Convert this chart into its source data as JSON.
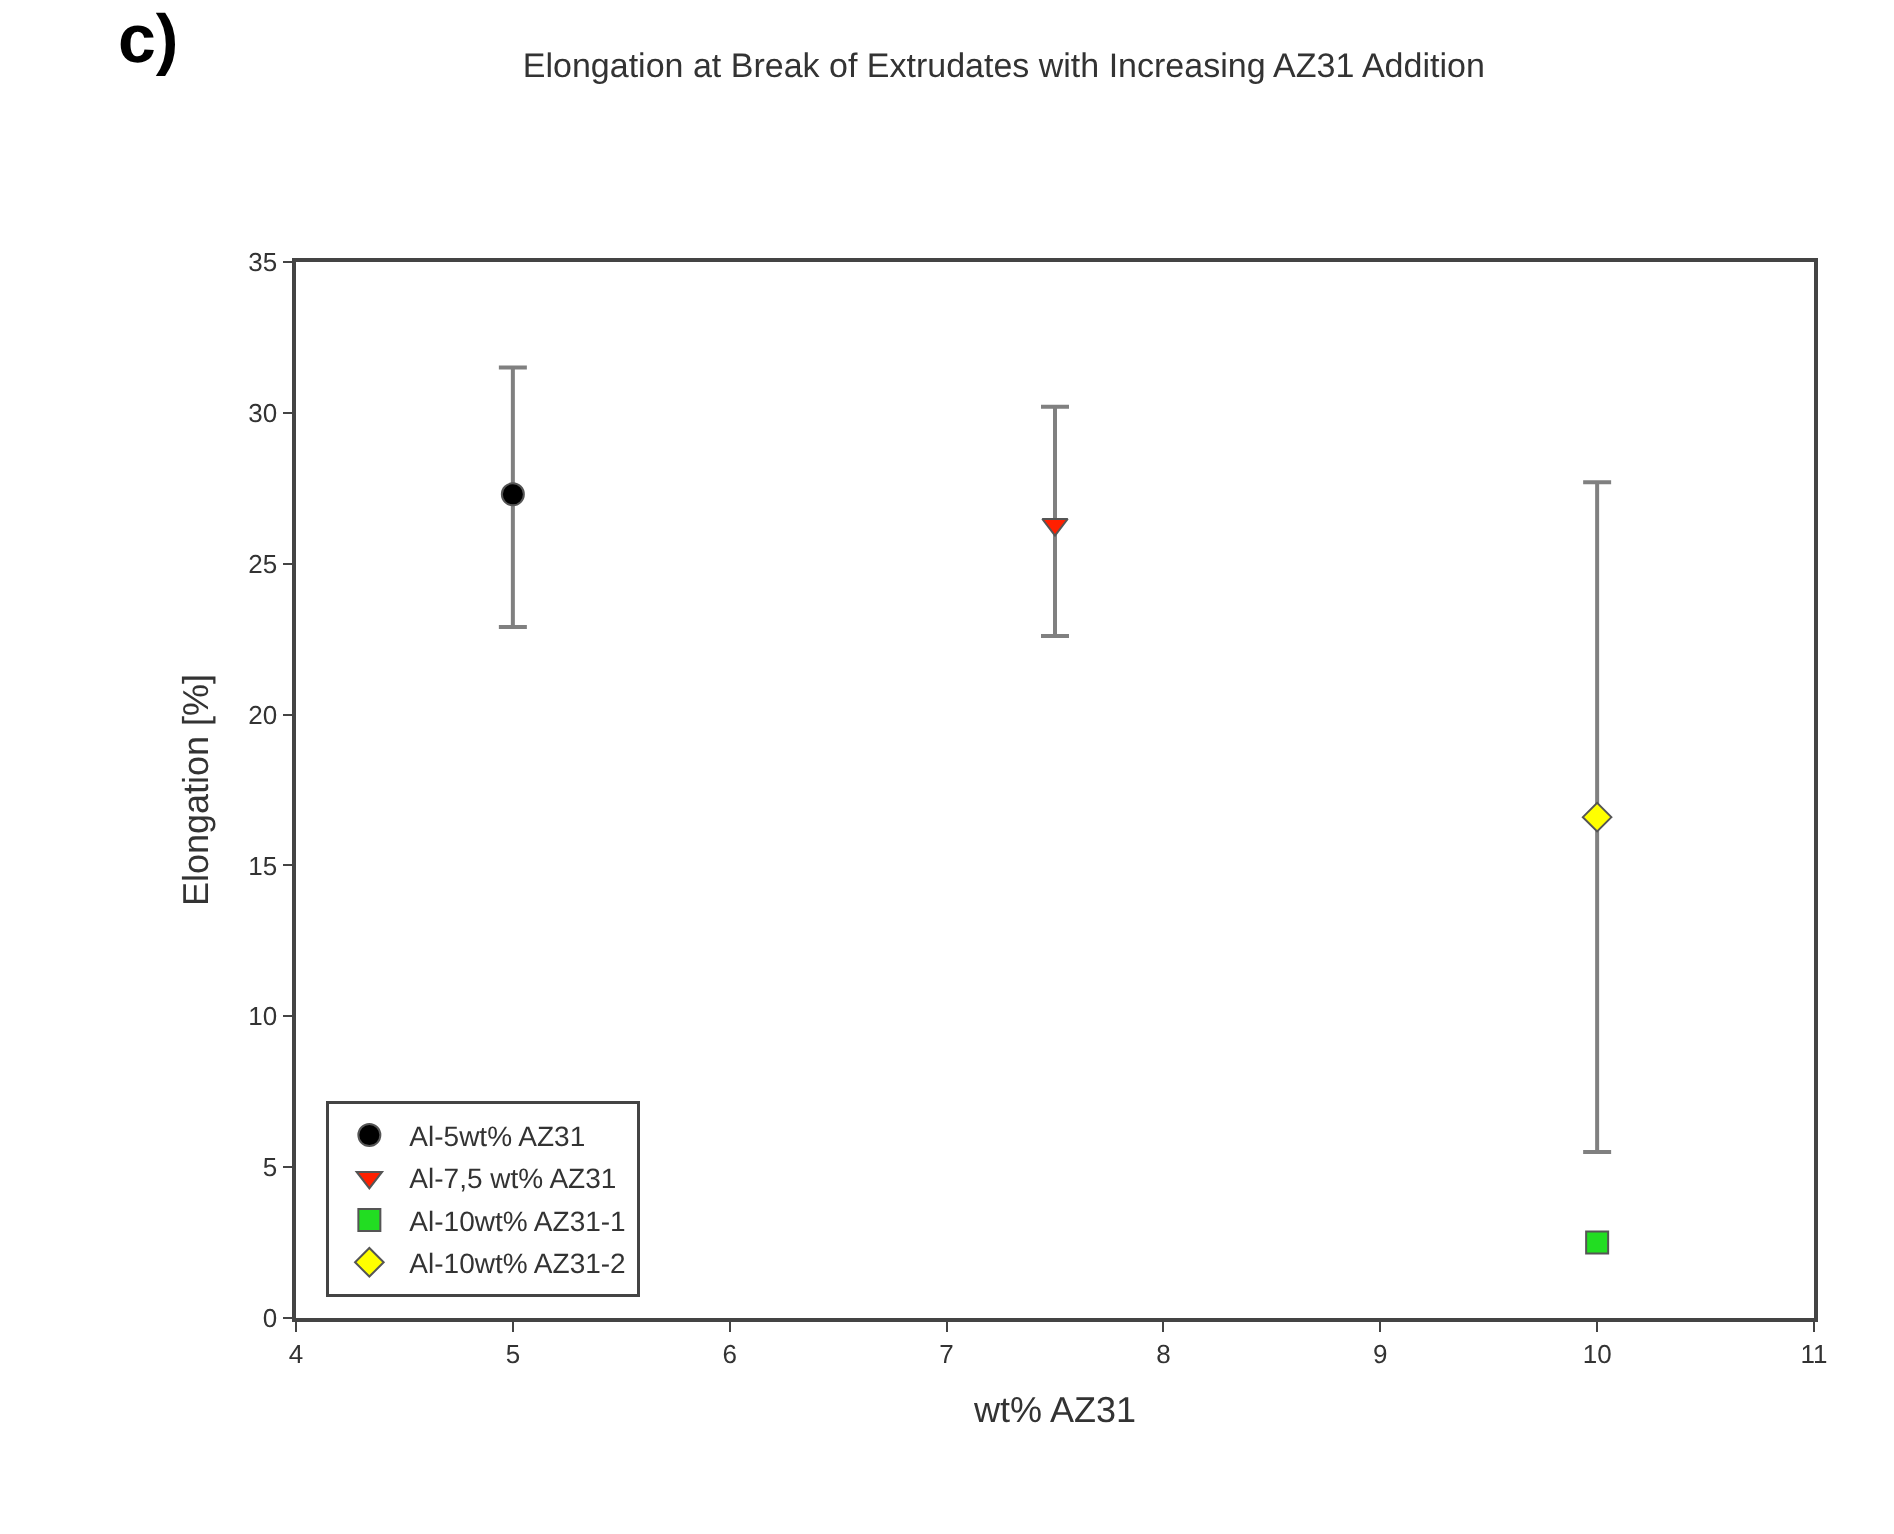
{
  "chart_data": {
    "type": "scatter",
    "title": "Elongation at Break of Extrudates with Increasing AZ31 Addition",
    "xlabel": "wt% AZ31",
    "ylabel": "Elongation [%]",
    "annotations": [
      "c)"
    ],
    "xlim": [
      4,
      11
    ],
    "xticks": [
      4,
      5,
      6,
      7,
      8,
      9,
      10,
      11
    ],
    "ylim": [
      0,
      35
    ],
    "yticks": [
      0,
      5,
      10,
      15,
      20,
      25,
      30,
      35
    ],
    "legend": "bottom left",
    "series": [
      {
        "name": "Al-5wt% AZ31",
        "color": "#000000",
        "marker": "circle",
        "x": [
          5
        ],
        "values": [
          27.3
        ],
        "errors": [
          [
            22.9,
            31.5
          ]
        ]
      },
      {
        "name": "Al-7,5 wt% AZ31",
        "color": "#ff2000",
        "marker": "triangle",
        "x": [
          7.5
        ],
        "values": [
          26.3
        ],
        "errors": [
          [
            22.6,
            30.2
          ]
        ]
      },
      {
        "name": "Al-10wt% AZ31-1",
        "color": "#22dd22",
        "marker": "square",
        "x": [
          10
        ],
        "values": [
          2.5
        ]
      },
      {
        "name": "Al-10wt% AZ31-2",
        "color": "#ffff00",
        "marker": "diamond",
        "x": [
          10
        ],
        "values": [
          16.6
        ],
        "errors": [
          [
            5.5,
            27.7
          ]
        ]
      }
    ]
  }
}
